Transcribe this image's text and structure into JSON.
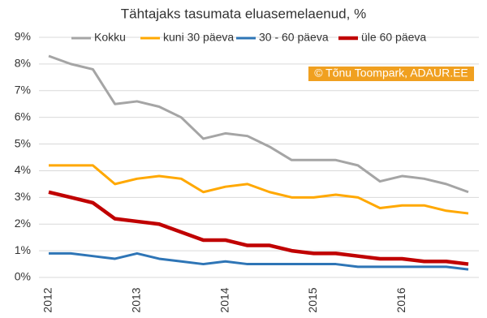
{
  "chart_data": {
    "type": "line",
    "title": "Tähtajaks tasumata eluasemelaenud, %",
    "annotation": "© Tõnu Toompark, ADAUR.EE",
    "categories": [
      "2012",
      null,
      null,
      null,
      "2013",
      null,
      null,
      null,
      "2014",
      null,
      null,
      null,
      "2015",
      null,
      null,
      null,
      "2016",
      null,
      null,
      null
    ],
    "series": [
      {
        "name": "Kokku",
        "color": "#a5a5a5",
        "values": [
          8.3,
          8.0,
          7.8,
          6.5,
          6.6,
          6.4,
          6.0,
          5.2,
          5.4,
          5.3,
          4.9,
          4.4,
          4.4,
          4.4,
          4.2,
          3.6,
          3.8,
          3.7,
          3.5,
          3.2
        ]
      },
      {
        "name": "kuni 30 päeva",
        "color": "#ffa800",
        "values": [
          4.2,
          4.2,
          4.2,
          3.5,
          3.7,
          3.8,
          3.7,
          3.2,
          3.4,
          3.5,
          3.2,
          3.0,
          3.0,
          3.1,
          3.0,
          2.6,
          2.7,
          2.7,
          2.5,
          2.4
        ]
      },
      {
        "name": "30 - 60 päeva",
        "color": "#2e75b6",
        "values": [
          0.9,
          0.9,
          0.8,
          0.7,
          0.9,
          0.7,
          0.6,
          0.5,
          0.6,
          0.5,
          0.5,
          0.5,
          0.5,
          0.5,
          0.4,
          0.4,
          0.4,
          0.4,
          0.4,
          0.3
        ]
      },
      {
        "name": "üle 60 päeva",
        "color": "#c00000",
        "values": [
          3.2,
          3.0,
          2.8,
          2.2,
          2.1,
          2.0,
          1.7,
          1.4,
          1.4,
          1.2,
          1.2,
          1.0,
          0.9,
          0.9,
          0.8,
          0.7,
          0.7,
          0.6,
          0.6,
          0.5
        ]
      }
    ],
    "ylim": [
      0,
      9
    ],
    "yticks": [
      {
        "value": 0,
        "label": "0%"
      },
      {
        "value": 1,
        "label": "1%"
      },
      {
        "value": 2,
        "label": "2%"
      },
      {
        "value": 3,
        "label": "3%"
      },
      {
        "value": 4,
        "label": "4%"
      },
      {
        "value": 5,
        "label": "5%"
      },
      {
        "value": 6,
        "label": "6%"
      },
      {
        "value": 7,
        "label": "7%"
      },
      {
        "value": 8,
        "label": "8%"
      },
      {
        "value": 9,
        "label": "9%"
      }
    ],
    "grid": true,
    "legend": "top"
  }
}
